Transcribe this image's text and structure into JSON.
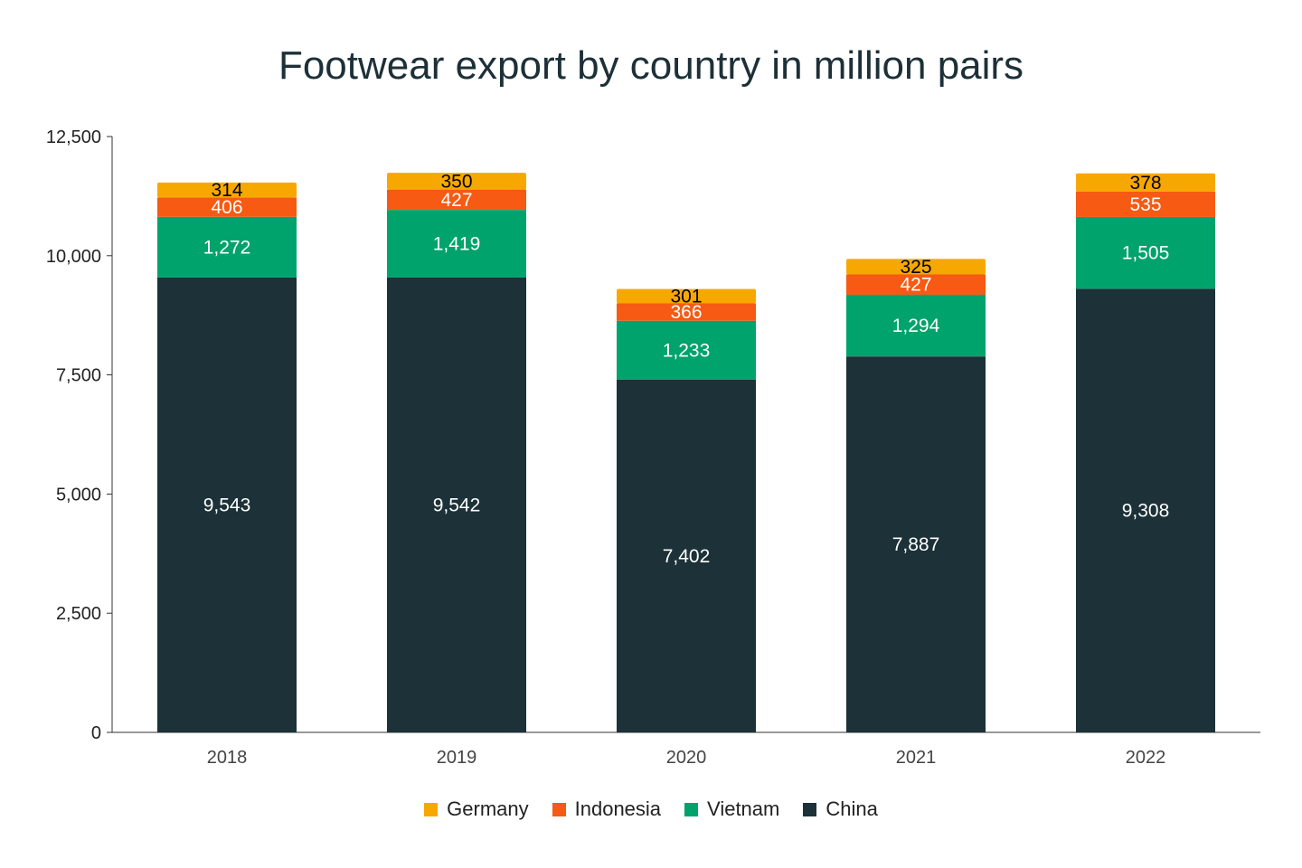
{
  "chart_data": {
    "type": "bar",
    "stacked": true,
    "title": "Footwear export by country in million pairs",
    "categories": [
      "2018",
      "2019",
      "2020",
      "2021",
      "2022"
    ],
    "series": [
      {
        "name": "China",
        "color": "#1c3138",
        "label_color": "#ffffff",
        "values": [
          9543,
          9542,
          7402,
          7887,
          9308
        ]
      },
      {
        "name": "Vietnam",
        "color": "#00a36c",
        "label_color": "#ffffff",
        "values": [
          1272,
          1419,
          1233,
          1294,
          1505
        ]
      },
      {
        "name": "Indonesia",
        "color": "#f65a13",
        "label_color": "#ffffff",
        "values": [
          406,
          427,
          366,
          427,
          535
        ]
      },
      {
        "name": "Germany",
        "color": "#f7a800",
        "label_color": "#000000",
        "values": [
          314,
          350,
          301,
          325,
          378
        ]
      }
    ],
    "value_labels": {
      "China": [
        "9,543",
        "9,542",
        "7,402",
        "7,887",
        "9,308"
      ],
      "Vietnam": [
        "1,272",
        "1,419",
        "1,233",
        "1,294",
        "1,505"
      ],
      "Indonesia": [
        "406",
        "427",
        "366",
        "427",
        "535"
      ],
      "Germany": [
        "314",
        "350",
        "301",
        "325",
        "378"
      ]
    },
    "ylim": [
      0,
      12500
    ],
    "yticks": [
      0,
      2500,
      5000,
      7500,
      10000,
      12500
    ],
    "ytick_labels": [
      "0",
      "2,500",
      "5,000",
      "7,500",
      "10,000",
      "12,500"
    ],
    "xlabel": "",
    "ylabel": "",
    "grid": false,
    "legend": {
      "position": "bottom",
      "order": [
        "Germany",
        "Indonesia",
        "Vietnam",
        "China"
      ]
    }
  }
}
